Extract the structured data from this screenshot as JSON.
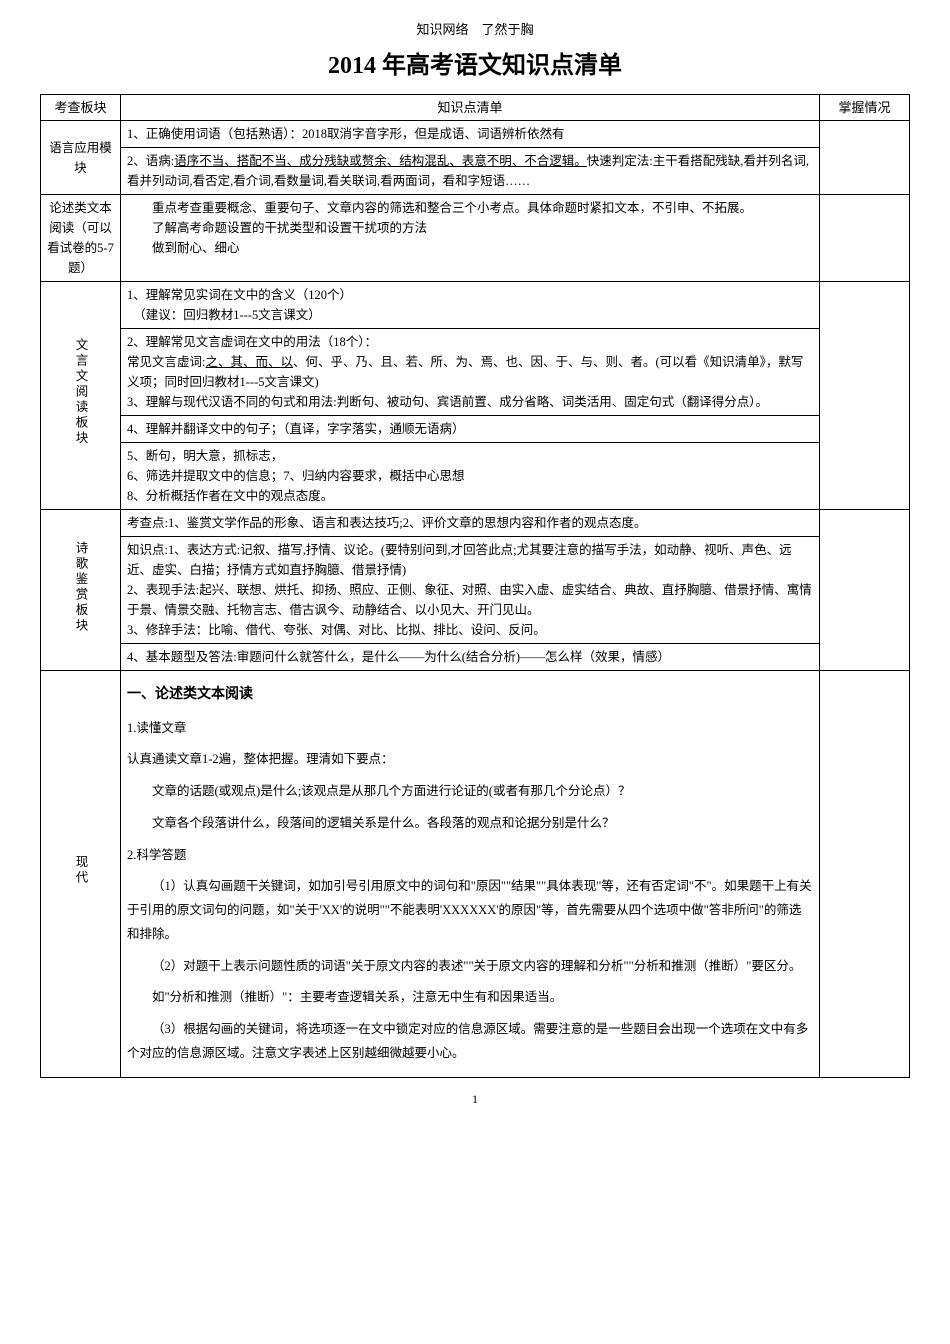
{
  "header_note": "知识网络　了然于胸",
  "title": "2014 年高考语文知识点清单",
  "columns": {
    "module": "考查板块",
    "points": "知识点清单",
    "status": "掌握情况"
  },
  "rows": {
    "lang_use": {
      "module": "语言应用模块",
      "p1": "1、正确使用词语（包括熟语）：2018取消字音字形，但是成语、词语辨析依然有",
      "p2_prefix": "2、语病:",
      "p2_underline": "语序不当、搭配不当、成分残缺或赘余、结构混乱、表意不明、不合逻辑。",
      "p2_suffix": "快速判定法:主干看搭配残缺,看并列名词,看并列动词,看否定,看介词,看数量词,看关联词,看两面词，看和字短语……"
    },
    "essay": {
      "module": "论述类文本阅读（可以看试卷的5-7题）",
      "line1": "　　重点考查重要概念、重要句子、文章内容的筛选和整合三个小考点。具体命题时紧扣文本，不引申、不拓展。",
      "line2": "　　了解高考命题设置的干扰类型和设置干扰项的方法",
      "line3": "　　做到耐心、细心"
    },
    "classical": {
      "module": "文言文阅读板块",
      "c1": "1、理解常见实词在文中的含义（120个）\n　（建议：回归教材1---5文言课文）",
      "c2_a": "2、理解常见文言虚词在文中的用法（18个）：",
      "c2_b_prefix": "常见文言虚词:",
      "c2_b_underline": "之、其、而、以",
      "c2_b_suffix": "、何、乎、乃、且、若、所、为、焉、也、因、于、与、则、者。(可以看《知识清单》，默写义项；同时回归教材1---5文言课文)",
      "c2_c": "3、理解与现代汉语不同的句式和用法:判断句、被动句、宾语前置、成分省略、词类活用、固定句式（翻译得分点）。",
      "c3": "4、理解并翻译文中的句子；（直译，字字落实，通顺无语病）",
      "c4": "5、断句，明大意，抓标志，\n6、筛选并提取文中的信息；7、归纳内容要求，概括中心思想\n8、分析概括作者在文中的观点态度。"
    },
    "poetry": {
      "module": "诗歌鉴赏板块",
      "p1": "考查点:1、鉴赏文学作品的形象、语言和表达技巧;2、评价文章的思想内容和作者的观点态度。",
      "p2_a": "知识点:1、表达方式:记叙、描写,抒情、议论。(要特别问到,才回答此点;尤其要注意的描写手法，如动静、视听、声色、远近、虚实、白描；抒情方式如直抒胸臆、借景抒情)",
      "p2_b": "2、表现手法:起兴、联想、烘托、抑扬、照应、正侧、象征、对照、由实入虚、虚实结合、典故、直抒胸臆、借景抒情、寓情于景、情景交融、托物言志、借古讽今、动静结合、以小见大、开门见山。",
      "p2_c": "3、修辞手法：比喻、借代、夸张、对偶、对比、比拟、排比、设问、反问。",
      "p3": "4、基本题型及答法:审题问什么就答什么，是什么——为什么(结合分析)——怎么样（效果，情感）"
    },
    "modern": {
      "module": "现代",
      "h1": "一、论述类文本阅读",
      "s1_title": "1.读懂文章",
      "s1_p1": "认真通读文章1-2遍，整体把握。理清如下要点：",
      "s1_p2": "文章的话题(或观点)是什么;该观点是从那几个方面进行论证的(或者有那几个分论点）？",
      "s1_p3": "文章各个段落讲什么，段落间的逻辑关系是什么。各段落的观点和论据分别是什么？",
      "s2_title": "2.科学答题",
      "s2_p1": "（1）认真勾画题干关键词，如加引号引用原文中的词句和\"原因\"\"结果\"\"具体表现\"等，还有否定词\"不\"。如果题干上有关于引用的原文词句的问题，如\"关于'XX'的说明\"\"不能表明'XXXXXX'的原因\"等，首先需要从四个选项中做\"答非所问\"的筛选和排除。",
      "s2_p2": "（2）对题干上表示问题性质的词语\"关于原文内容的表述\"\"关于原文内容的理解和分析\"\"分析和推测（推断）\"要区分。",
      "s2_p3": "如\"分析和推测（推断）\"：主要考查逻辑关系，注意无中生有和因果适当。",
      "s2_p4": "（3）根据勾画的关键词，将选项逐一在文中锁定对应的信息源区域。需要注意的是一些题目会出现一个选项在文中有多个对应的信息源区域。注意文字表述上区别越细微越要小心。"
    }
  },
  "page_number": "1"
}
